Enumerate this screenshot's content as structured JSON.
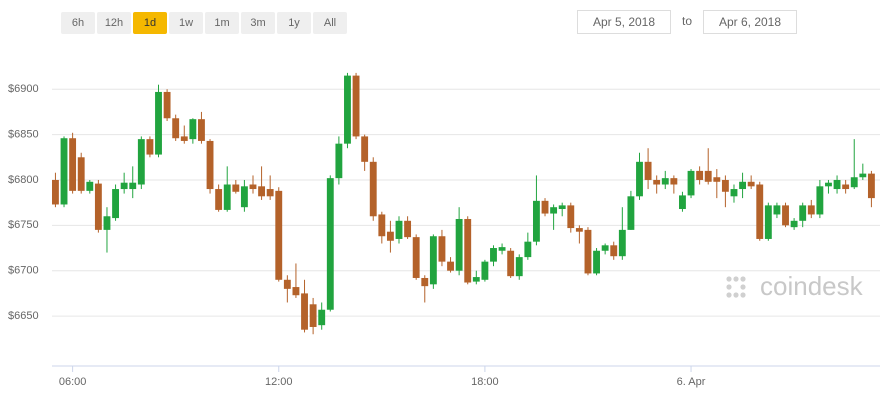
{
  "controls": {
    "ranges": [
      "6h",
      "12h",
      "1d",
      "1w",
      "1m",
      "3m",
      "1y",
      "All"
    ],
    "active": 2,
    "from": "Apr 5, 2018",
    "separator": "to",
    "until": "Apr 6, 2018"
  },
  "watermark": "coindesk",
  "chart_data": {
    "type": "candlestick",
    "x": [
      5.5,
      5.75,
      6,
      6.25,
      6.5,
      6.75,
      7,
      7.25,
      7.5,
      7.75,
      8,
      8.25,
      8.5,
      8.75,
      9,
      9.25,
      9.5,
      9.75,
      10,
      10.25,
      10.5,
      10.75,
      11,
      11.25,
      11.5,
      11.75,
      12,
      12.25,
      12.5,
      12.75,
      13,
      13.25,
      13.5,
      13.75,
      14,
      14.25,
      14.5,
      14.75,
      15,
      15.25,
      15.5,
      15.75,
      16,
      16.25,
      16.5,
      16.75,
      17,
      17.25,
      17.5,
      17.75,
      18,
      18.25,
      18.5,
      18.75,
      19,
      19.25,
      19.5,
      19.75,
      20,
      20.25,
      20.5,
      20.75,
      21,
      21.25,
      21.5,
      21.75,
      22,
      22.25,
      22.5,
      22.75,
      23,
      23.25,
      23.5,
      23.75,
      24,
      24.25,
      24.5,
      24.75,
      25,
      25.25,
      25.5,
      25.75,
      26,
      26.25,
      26.5,
      26.75,
      27,
      27.25,
      27.5,
      27.75,
      28,
      28.25,
      28.5,
      28.75,
      29,
      29.25
    ],
    "open": [
      6800,
      6773,
      6846,
      6825,
      6788,
      6796,
      6745,
      6758,
      6790,
      6790,
      6795,
      6845,
      6828,
      6897,
      6868,
      6848,
      6845,
      6867,
      6843,
      6790,
      6767,
      6795,
      6770,
      6795,
      6793,
      6790,
      6788,
      6690,
      6682,
      6675,
      6663,
      6640,
      6657,
      6802,
      6840,
      6915,
      6848,
      6820,
      6762,
      6743,
      6735,
      6755,
      6737,
      6692,
      6685,
      6738,
      6710,
      6700,
      6757,
      6688,
      6690,
      6710,
      6722,
      6722,
      6694,
      6715,
      6732,
      6777,
      6763,
      6768,
      6772,
      6747,
      6745,
      6697,
      6722,
      6728,
      6716,
      6745,
      6782,
      6820,
      6800,
      6795,
      6802,
      6768,
      6783,
      6810,
      6810,
      6803,
      6800,
      6782,
      6790,
      6798,
      6795,
      6735,
      6762,
      6772,
      6748,
      6755,
      6772,
      6762,
      6793,
      6790,
      6795,
      6792,
      6803,
      6807
    ],
    "high": [
      6808,
      6848,
      6852,
      6830,
      6800,
      6800,
      6770,
      6795,
      6808,
      6815,
      6848,
      6848,
      6905,
      6900,
      6872,
      6860,
      6868,
      6875,
      6845,
      6795,
      6815,
      6800,
      6800,
      6805,
      6815,
      6805,
      6792,
      6695,
      6708,
      6690,
      6670,
      6665,
      6805,
      6848,
      6918,
      6918,
      6850,
      6825,
      6765,
      6755,
      6760,
      6760,
      6740,
      6695,
      6740,
      6745,
      6715,
      6770,
      6760,
      6700,
      6712,
      6728,
      6730,
      6725,
      6718,
      6742,
      6805,
      6780,
      6773,
      6775,
      6775,
      6750,
      6748,
      6725,
      6730,
      6732,
      6770,
      6788,
      6830,
      6835,
      6805,
      6810,
      6805,
      6787,
      6812,
      6815,
      6835,
      6812,
      6805,
      6795,
      6808,
      6805,
      6798,
      6775,
      6775,
      6775,
      6758,
      6775,
      6778,
      6800,
      6800,
      6805,
      6800,
      6845,
      6818,
      6810
    ],
    "low": [
      6770,
      6770,
      6785,
      6785,
      6785,
      6742,
      6720,
      6755,
      6785,
      6780,
      6790,
      6825,
      6825,
      6865,
      6843,
      6840,
      6840,
      6840,
      6785,
      6765,
      6765,
      6785,
      6765,
      6785,
      6778,
      6778,
      6688,
      6665,
      6670,
      6632,
      6630,
      6635,
      6655,
      6795,
      6835,
      6845,
      6810,
      6755,
      6730,
      6720,
      6730,
      6735,
      6690,
      6665,
      6680,
      6705,
      6698,
      6695,
      6685,
      6685,
      6688,
      6705,
      6718,
      6692,
      6690,
      6712,
      6728,
      6760,
      6745,
      6760,
      6742,
      6730,
      6695,
      6695,
      6718,
      6712,
      6712,
      6745,
      6778,
      6790,
      6785,
      6790,
      6785,
      6765,
      6780,
      6795,
      6795,
      6780,
      6770,
      6775,
      6780,
      6790,
      6733,
      6733,
      6758,
      6748,
      6745,
      6748,
      6758,
      6758,
      6785,
      6785,
      6785,
      6790,
      6800,
      6770
    ],
    "close": [
      6773,
      6846,
      6788,
      6788,
      6798,
      6745,
      6760,
      6790,
      6797,
      6797,
      6845,
      6828,
      6897,
      6868,
      6846,
      6843,
      6867,
      6843,
      6790,
      6767,
      6795,
      6787,
      6793,
      6790,
      6782,
      6782,
      6690,
      6680,
      6673,
      6635,
      6638,
      6657,
      6802,
      6840,
      6915,
      6848,
      6820,
      6760,
      6738,
      6733,
      6755,
      6737,
      6692,
      6683,
      6738,
      6710,
      6700,
      6757,
      6687,
      6693,
      6710,
      6725,
      6726,
      6694,
      6715,
      6732,
      6777,
      6763,
      6770,
      6772,
      6747,
      6743,
      6697,
      6722,
      6728,
      6716,
      6745,
      6782,
      6820,
      6800,
      6795,
      6802,
      6795,
      6783,
      6810,
      6800,
      6798,
      6798,
      6787,
      6790,
      6798,
      6793,
      6735,
      6772,
      6772,
      6750,
      6755,
      6772,
      6762,
      6793,
      6797,
      6800,
      6790,
      6803,
      6807,
      6780
    ],
    "up_color": "#21a43f",
    "down_color": "#b4622a",
    "xlim": [
      5.4,
      29.5
    ],
    "xticks": [
      {
        "value": 6,
        "label": "06:00"
      },
      {
        "value": 12,
        "label": "12:00"
      },
      {
        "value": 18,
        "label": "18:00"
      },
      {
        "value": 24,
        "label": "6. Apr"
      }
    ],
    "ylim": [
      6595,
      6930
    ],
    "yticks": [
      {
        "value": 6650,
        "label": "$6650"
      },
      {
        "value": 6700,
        "label": "$6700"
      },
      {
        "value": 6750,
        "label": "$6750"
      },
      {
        "value": 6800,
        "label": "$6800"
      },
      {
        "value": 6850,
        "label": "$6850"
      },
      {
        "value": 6900,
        "label": "$6900"
      }
    ],
    "grid": true
  }
}
